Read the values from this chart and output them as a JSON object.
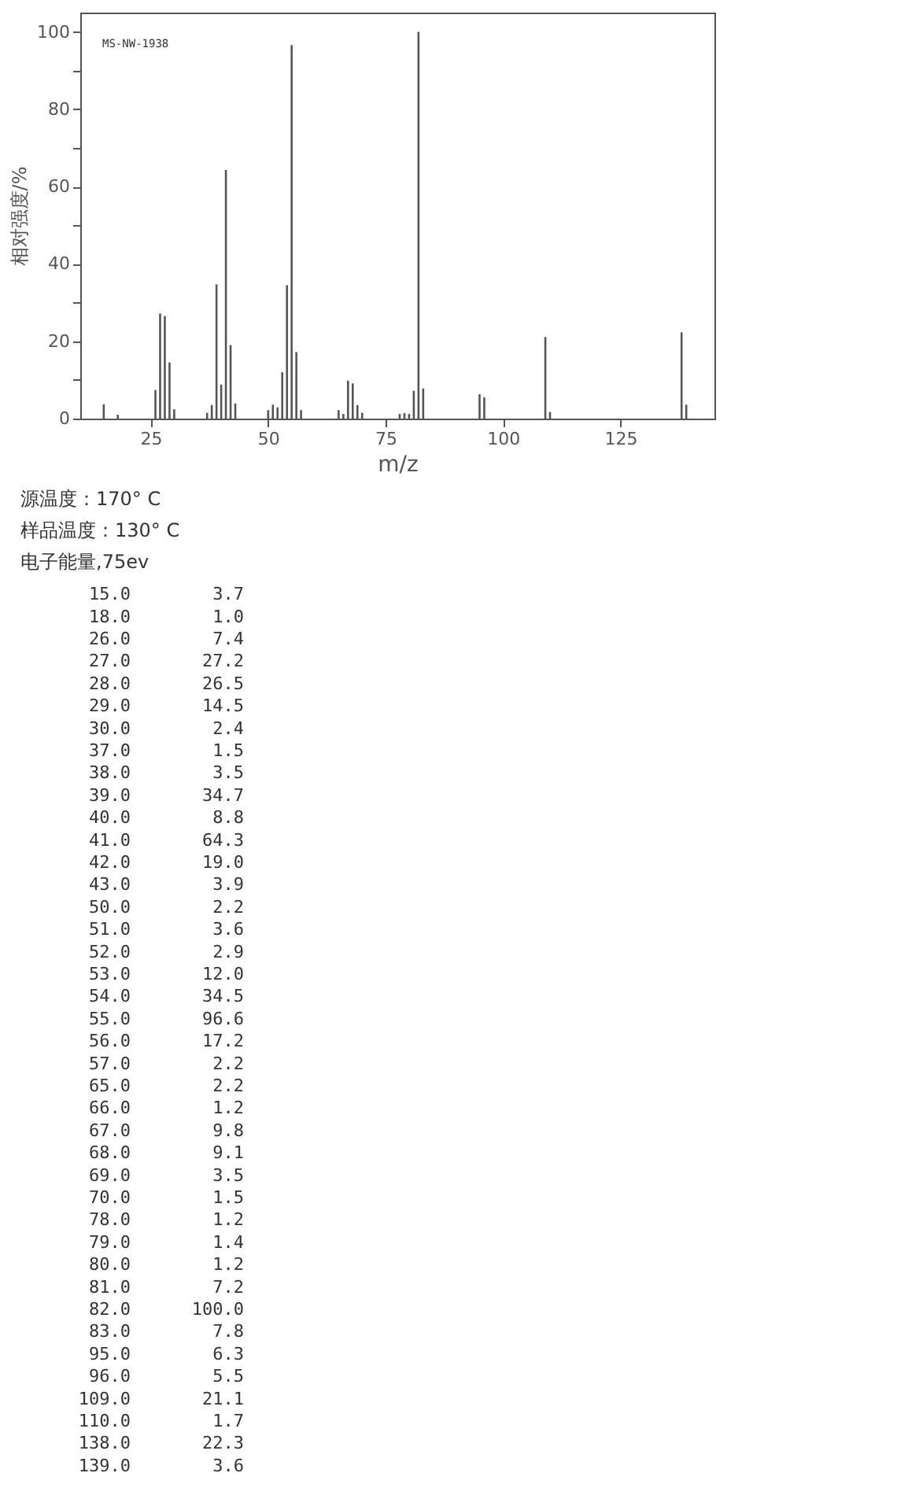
{
  "chart_data": [
    {
      "type": "bar",
      "xlabel": "m/z",
      "ylabel": "相对强度/%",
      "x": [
        15,
        18,
        26,
        27,
        28,
        29,
        30,
        37,
        38,
        39,
        40,
        41,
        42,
        43,
        50,
        51,
        52,
        53,
        54,
        55,
        56,
        57,
        65,
        66,
        67,
        68,
        69,
        70,
        78,
        79,
        80,
        81,
        82,
        83,
        95,
        96,
        109,
        110,
        138,
        139
      ],
      "values": [
        3.7,
        1.0,
        7.4,
        27.2,
        26.5,
        14.5,
        2.4,
        1.5,
        3.5,
        34.7,
        8.8,
        64.3,
        19.0,
        3.9,
        2.2,
        3.6,
        2.9,
        12.0,
        34.5,
        96.6,
        17.2,
        2.2,
        2.2,
        1.2,
        9.8,
        9.1,
        3.5,
        1.5,
        1.2,
        1.4,
        1.2,
        7.2,
        100.0,
        7.8,
        6.3,
        5.5,
        21.1,
        1.7,
        22.3,
        3.6
      ],
      "color": "#555555",
      "xlim": [
        10,
        145
      ],
      "xticks": [
        25,
        50,
        75,
        100,
        125
      ],
      "ylim": [
        0,
        105
      ],
      "yticks": [
        0,
        {
          "value": 10,
          "label": null
        },
        20,
        {
          "value": 30,
          "label": null
        },
        40,
        {
          "value": 50,
          "label": null
        },
        60,
        {
          "value": 70,
          "label": null
        },
        80,
        {
          "value": 90,
          "label": null
        },
        100
      ],
      "grid": false,
      "annotations": [
        "MS-NW-1938",
        "源温度：170° C",
        "样品温度：130° C",
        "电子能量,75ev"
      ]
    },
    {
      "type": "other",
      "categories": [
        "15.0",
        "18.0",
        "26.0",
        "27.0",
        "28.0",
        "29.0",
        "30.0",
        "37.0",
        "38.0",
        "39.0",
        "40.0",
        "41.0",
        "42.0",
        "43.0",
        "50.0",
        "51.0",
        "52.0",
        "53.0",
        "54.0",
        "55.0",
        "56.0",
        "57.0",
        "65.0",
        "66.0",
        "67.0",
        "68.0",
        "69.0",
        "70.0",
        "78.0",
        "79.0",
        "80.0",
        "81.0",
        "82.0",
        "83.0",
        "95.0",
        "96.0",
        "109.0",
        "110.0",
        "138.0",
        "139.0"
      ],
      "values": [
        3.7,
        1.0,
        7.4,
        27.2,
        26.5,
        14.5,
        2.4,
        1.5,
        3.5,
        34.7,
        8.8,
        64.3,
        19.0,
        3.9,
        2.2,
        3.6,
        2.9,
        12.0,
        34.5,
        96.6,
        17.2,
        2.2,
        2.2,
        1.2,
        9.8,
        9.1,
        3.5,
        1.5,
        1.2,
        1.4,
        1.2,
        7.2,
        100.0,
        7.8,
        6.3,
        5.5,
        21.1,
        1.7,
        22.3,
        3.6
      ],
      "value_labels": [
        "3.7",
        "1.0",
        "7.4",
        "27.2",
        "26.5",
        "14.5",
        "2.4",
        "1.5",
        "3.5",
        "34.7",
        "8.8",
        "64.3",
        "19.0",
        "3.9",
        "2.2",
        "3.6",
        "2.9",
        "12.0",
        "34.5",
        "96.6",
        "17.2",
        "2.2",
        "2.2",
        "1.2",
        "9.8",
        "9.1",
        "3.5",
        "1.5",
        "1.2",
        "1.4",
        "1.2",
        "7.2",
        "100.0",
        "7.8",
        "6.3",
        "5.5",
        "21.1",
        "1.7",
        "22.3",
        "3.6"
      ]
    }
  ]
}
